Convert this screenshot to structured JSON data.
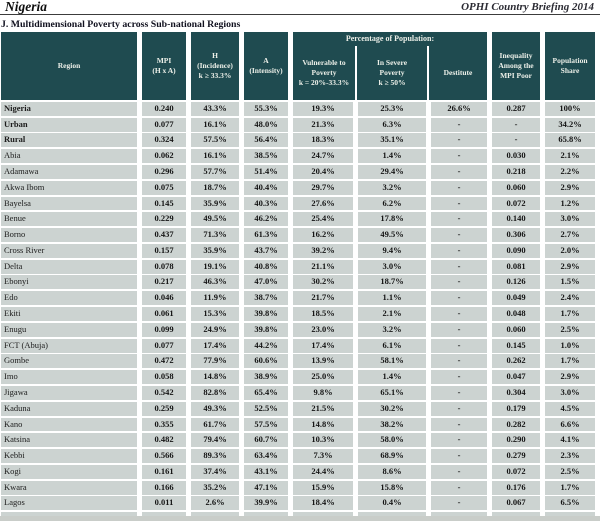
{
  "page": {
    "country_title": "Nigeria",
    "briefing_title": "OPHI Country Briefing 2014",
    "section_title": "J. Multidimensional Poverty across Sub-national Regions"
  },
  "colors": {
    "header_bg": "#1f4b50",
    "row_bg": "#ccd3d1",
    "header_text": "#edf0e9"
  },
  "table": {
    "headers": {
      "region": "Region",
      "mpi": "MPI\n(H x A)",
      "h": "H\n(Incidence)\nk ≥ 33.3%",
      "a": "A\n(Intensity)",
      "pct_group": "Percentage of Population:",
      "vulnerable": "Vulnerable to\nPoverty\nk = 20%-33.3%",
      "severe": "In Severe\nPoverty\nk ≥ 50%",
      "destitute": "Destitute",
      "inequality": "Inequality\nAmong the\nMPI Poor",
      "share": "Population\nShare"
    },
    "rows": [
      {
        "region": "Nigeria",
        "mpi": "0.240",
        "h": "43.3%",
        "a": "55.3%",
        "vulnerable": "19.3%",
        "severe": "25.3%",
        "destitute": "26.6%",
        "inequality": "0.287",
        "share": "100%",
        "emphasis": true
      },
      {
        "region": "Urban",
        "mpi": "0.077",
        "h": "16.1%",
        "a": "48.0%",
        "vulnerable": "21.3%",
        "severe": "6.3%",
        "destitute": "-",
        "inequality": "-",
        "share": "34.2%",
        "emphasis": true
      },
      {
        "region": "Rural",
        "mpi": "0.324",
        "h": "57.5%",
        "a": "56.4%",
        "vulnerable": "18.3%",
        "severe": "35.1%",
        "destitute": "-",
        "inequality": "-",
        "share": "65.8%",
        "emphasis": true
      },
      {
        "region": "Abia",
        "mpi": "0.062",
        "h": "16.1%",
        "a": "38.5%",
        "vulnerable": "24.7%",
        "severe": "1.4%",
        "destitute": "-",
        "inequality": "0.030",
        "share": "2.1%",
        "emphasis": false
      },
      {
        "region": "Adamawa",
        "mpi": "0.296",
        "h": "57.7%",
        "a": "51.4%",
        "vulnerable": "20.4%",
        "severe": "29.4%",
        "destitute": "-",
        "inequality": "0.218",
        "share": "2.2%",
        "emphasis": false
      },
      {
        "region": "Akwa Ibom",
        "mpi": "0.075",
        "h": "18.7%",
        "a": "40.4%",
        "vulnerable": "29.7%",
        "severe": "3.2%",
        "destitute": "-",
        "inequality": "0.060",
        "share": "2.9%",
        "emphasis": false
      },
      {
        "region": "Bayelsa",
        "mpi": "0.145",
        "h": "35.9%",
        "a": "40.3%",
        "vulnerable": "27.6%",
        "severe": "6.2%",
        "destitute": "-",
        "inequality": "0.072",
        "share": "1.2%",
        "emphasis": false
      },
      {
        "region": "Benue",
        "mpi": "0.229",
        "h": "49.5%",
        "a": "46.2%",
        "vulnerable": "25.4%",
        "severe": "17.8%",
        "destitute": "-",
        "inequality": "0.140",
        "share": "3.0%",
        "emphasis": false
      },
      {
        "region": "Borno",
        "mpi": "0.437",
        "h": "71.3%",
        "a": "61.3%",
        "vulnerable": "16.2%",
        "severe": "49.5%",
        "destitute": "-",
        "inequality": "0.306",
        "share": "2.7%",
        "emphasis": false
      },
      {
        "region": "Cross River",
        "mpi": "0.157",
        "h": "35.9%",
        "a": "43.7%",
        "vulnerable": "39.2%",
        "severe": "9.4%",
        "destitute": "-",
        "inequality": "0.090",
        "share": "2.0%",
        "emphasis": false
      },
      {
        "region": "Delta",
        "mpi": "0.078",
        "h": "19.1%",
        "a": "40.8%",
        "vulnerable": "21.1%",
        "severe": "3.0%",
        "destitute": "-",
        "inequality": "0.081",
        "share": "2.9%",
        "emphasis": false
      },
      {
        "region": "Ebonyi",
        "mpi": "0.217",
        "h": "46.3%",
        "a": "47.0%",
        "vulnerable": "30.2%",
        "severe": "18.7%",
        "destitute": "-",
        "inequality": "0.126",
        "share": "1.5%",
        "emphasis": false
      },
      {
        "region": "Edo",
        "mpi": "0.046",
        "h": "11.9%",
        "a": "38.7%",
        "vulnerable": "21.7%",
        "severe": "1.1%",
        "destitute": "-",
        "inequality": "0.049",
        "share": "2.4%",
        "emphasis": false
      },
      {
        "region": "Ekiti",
        "mpi": "0.061",
        "h": "15.3%",
        "a": "39.8%",
        "vulnerable": "18.5%",
        "severe": "2.1%",
        "destitute": "-",
        "inequality": "0.048",
        "share": "1.7%",
        "emphasis": false
      },
      {
        "region": "Enugu",
        "mpi": "0.099",
        "h": "24.9%",
        "a": "39.8%",
        "vulnerable": "23.0%",
        "severe": "3.2%",
        "destitute": "-",
        "inequality": "0.060",
        "share": "2.5%",
        "emphasis": false
      },
      {
        "region": "FCT (Abuja)",
        "mpi": "0.077",
        "h": "17.4%",
        "a": "44.2%",
        "vulnerable": "17.4%",
        "severe": "6.1%",
        "destitute": "-",
        "inequality": "0.145",
        "share": "1.0%",
        "emphasis": false
      },
      {
        "region": "Gombe",
        "mpi": "0.472",
        "h": "77.9%",
        "a": "60.6%",
        "vulnerable": "13.9%",
        "severe": "58.1%",
        "destitute": "-",
        "inequality": "0.262",
        "share": "1.7%",
        "emphasis": false
      },
      {
        "region": "Imo",
        "mpi": "0.058",
        "h": "14.8%",
        "a": "38.9%",
        "vulnerable": "25.0%",
        "severe": "1.4%",
        "destitute": "-",
        "inequality": "0.047",
        "share": "2.9%",
        "emphasis": false
      },
      {
        "region": "Jigawa",
        "mpi": "0.542",
        "h": "82.8%",
        "a": "65.4%",
        "vulnerable": "9.8%",
        "severe": "65.1%",
        "destitute": "-",
        "inequality": "0.304",
        "share": "3.0%",
        "emphasis": false
      },
      {
        "region": "Kaduna",
        "mpi": "0.259",
        "h": "49.3%",
        "a": "52.5%",
        "vulnerable": "21.5%",
        "severe": "30.2%",
        "destitute": "-",
        "inequality": "0.179",
        "share": "4.5%",
        "emphasis": false
      },
      {
        "region": "Kano",
        "mpi": "0.355",
        "h": "61.7%",
        "a": "57.5%",
        "vulnerable": "14.8%",
        "severe": "38.2%",
        "destitute": "-",
        "inequality": "0.282",
        "share": "6.6%",
        "emphasis": false
      },
      {
        "region": "Katsina",
        "mpi": "0.482",
        "h": "79.4%",
        "a": "60.7%",
        "vulnerable": "10.3%",
        "severe": "58.0%",
        "destitute": "-",
        "inequality": "0.290",
        "share": "4.1%",
        "emphasis": false
      },
      {
        "region": "Kebbi",
        "mpi": "0.566",
        "h": "89.3%",
        "a": "63.4%",
        "vulnerable": "7.3%",
        "severe": "68.9%",
        "destitute": "-",
        "inequality": "0.279",
        "share": "2.3%",
        "emphasis": false
      },
      {
        "region": "Kogi",
        "mpi": "0.161",
        "h": "37.4%",
        "a": "43.1%",
        "vulnerable": "24.4%",
        "severe": "8.6%",
        "destitute": "-",
        "inequality": "0.072",
        "share": "2.5%",
        "emphasis": false
      },
      {
        "region": "Kwara",
        "mpi": "0.166",
        "h": "35.2%",
        "a": "47.1%",
        "vulnerable": "15.9%",
        "severe": "15.8%",
        "destitute": "-",
        "inequality": "0.176",
        "share": "1.7%",
        "emphasis": false
      },
      {
        "region": "Lagos",
        "mpi": "0.011",
        "h": "2.6%",
        "a": "39.9%",
        "vulnerable": "18.4%",
        "severe": "0.4%",
        "destitute": "-",
        "inequality": "0.067",
        "share": "6.5%",
        "emphasis": false
      }
    ]
  }
}
